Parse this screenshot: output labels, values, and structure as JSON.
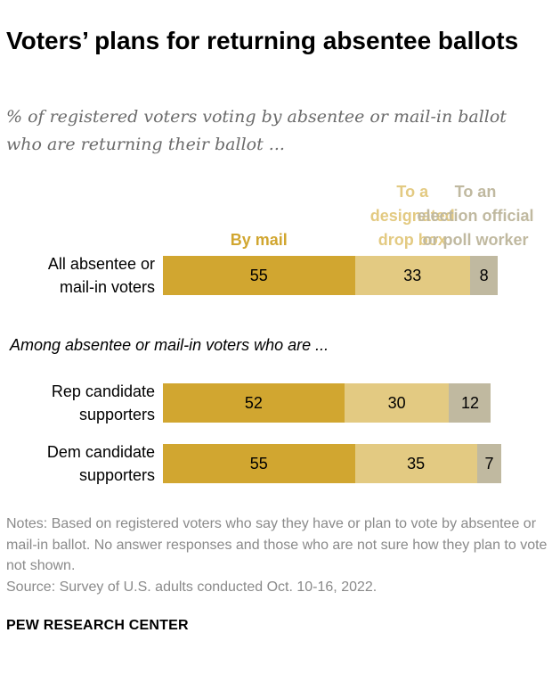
{
  "title": "Voters’ plans for returning absentee ballots",
  "subtitle": "% of registered voters voting by absentee or mail-in ballot who are returning their ballot ...",
  "group_label": "Among absentee or mail-in voters who are ...",
  "notes": [
    "Notes: Based on registered voters who say they have or plan to vote by absentee or mail-in ballot. No answer responses and those who are not sure how they plan to vote not shown.",
    "Source: Survey of U.S. adults conducted Oct. 10-16, 2022."
  ],
  "brand": "PEW RESEARCH CENTER",
  "colors": {
    "by_mail": "#d1a630",
    "drop_box": "#e3ca82",
    "official": "#c0b9a0"
  },
  "chart_data": {
    "type": "bar",
    "orientation": "horizontal",
    "stacked": true,
    "categories": [
      "All absentee or\nmail-in voters",
      "Rep candidate\nsupporters",
      "Dem candidate\nsupporters"
    ],
    "series": [
      {
        "name": "By mail",
        "values": [
          55,
          52,
          55
        ]
      },
      {
        "name": "To a\ndesignated\ndrop box",
        "values": [
          33,
          30,
          35
        ]
      },
      {
        "name": "To an\nelection official\nor poll worker",
        "values": [
          8,
          12,
          7
        ]
      }
    ],
    "xlim": [
      0,
      100
    ],
    "legend_position": "top"
  }
}
